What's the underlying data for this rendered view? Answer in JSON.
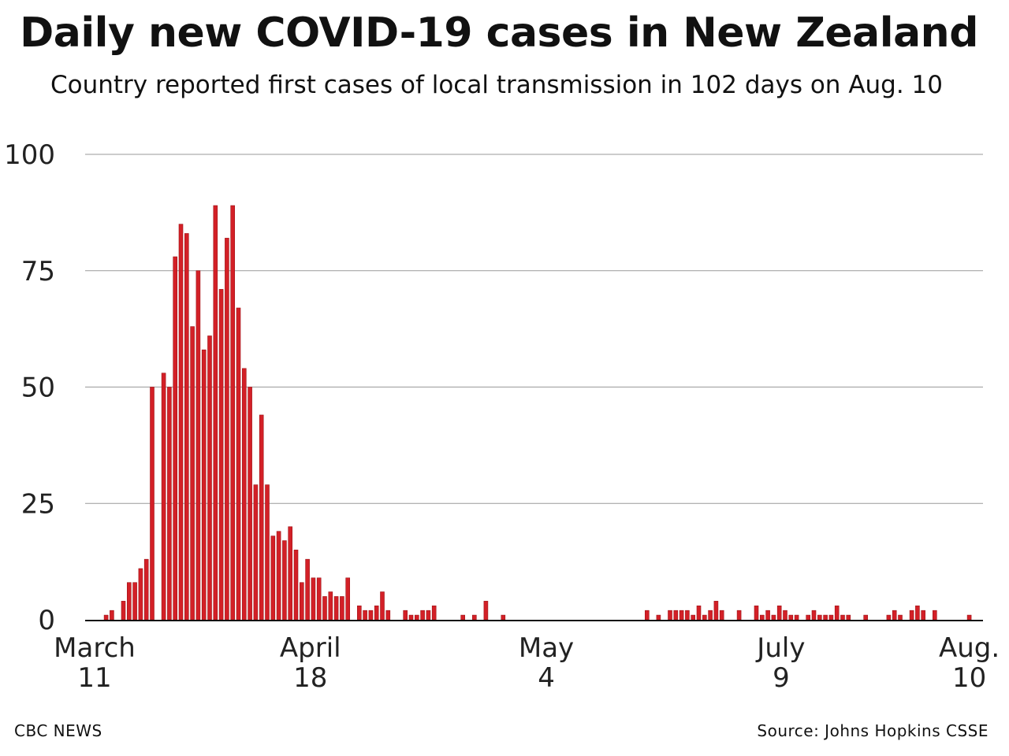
{
  "title": "Daily new COVID-19 cases in New Zealand",
  "subtitle": "Country reported first cases of local transmission in 102 days on Aug. 10",
  "footer": {
    "credit": "CBC NEWS",
    "source": "Source: Johns Hopkins CSSE"
  },
  "colors": {
    "bar": "#d32027",
    "bar_edge": "#9e1418",
    "grid": "#9a9a9a",
    "axis": "#111111"
  },
  "chart_data": {
    "type": "bar",
    "title": "Daily new COVID-19 cases in New Zealand",
    "xlabel": "",
    "ylabel": "",
    "ylim": [
      0,
      100
    ],
    "y_ticks": [
      0,
      25,
      50,
      75,
      100
    ],
    "grid": true,
    "x_ticks": [
      {
        "day_index": 0,
        "line1": "March",
        "line2": "11"
      },
      {
        "day_index": 37.5,
        "line1": "April",
        "line2": "18"
      },
      {
        "day_index": 78.5,
        "line1": "May",
        "line2": "4"
      },
      {
        "day_index": 119.3,
        "line1": "July",
        "line2": "9"
      },
      {
        "day_index": 152,
        "line1": "Aug.",
        "line2": "10"
      }
    ],
    "values": [
      0,
      0,
      1,
      2,
      0,
      4,
      8,
      8,
      11,
      13,
      50,
      0,
      53,
      50,
      78,
      85,
      83,
      63,
      75,
      58,
      61,
      89,
      71,
      82,
      89,
      67,
      54,
      50,
      29,
      44,
      29,
      18,
      19,
      17,
      20,
      15,
      8,
      13,
      9,
      9,
      5,
      6,
      5,
      5,
      9,
      0,
      3,
      2,
      2,
      3,
      6,
      2,
      0,
      0,
      2,
      1,
      1,
      2,
      2,
      3,
      0,
      0,
      0,
      0,
      1,
      0,
      1,
      0,
      4,
      0,
      0,
      1,
      0,
      0,
      0,
      0,
      0,
      0,
      0,
      0,
      0,
      0,
      0,
      0,
      0,
      0,
      0,
      0,
      0,
      0,
      0,
      0,
      0,
      0,
      0,
      0,
      2,
      0,
      1,
      0,
      2,
      2,
      2,
      2,
      1,
      3,
      1,
      2,
      4,
      2,
      0,
      0,
      2,
      0,
      0,
      3,
      1,
      2,
      1,
      3,
      2,
      1,
      1,
      0,
      1,
      2,
      1,
      1,
      1,
      3,
      1,
      1,
      0,
      0,
      1,
      0,
      0,
      0,
      1,
      2,
      1,
      0,
      2,
      3,
      2,
      0,
      2,
      0,
      0,
      0,
      0,
      0,
      1
    ]
  }
}
